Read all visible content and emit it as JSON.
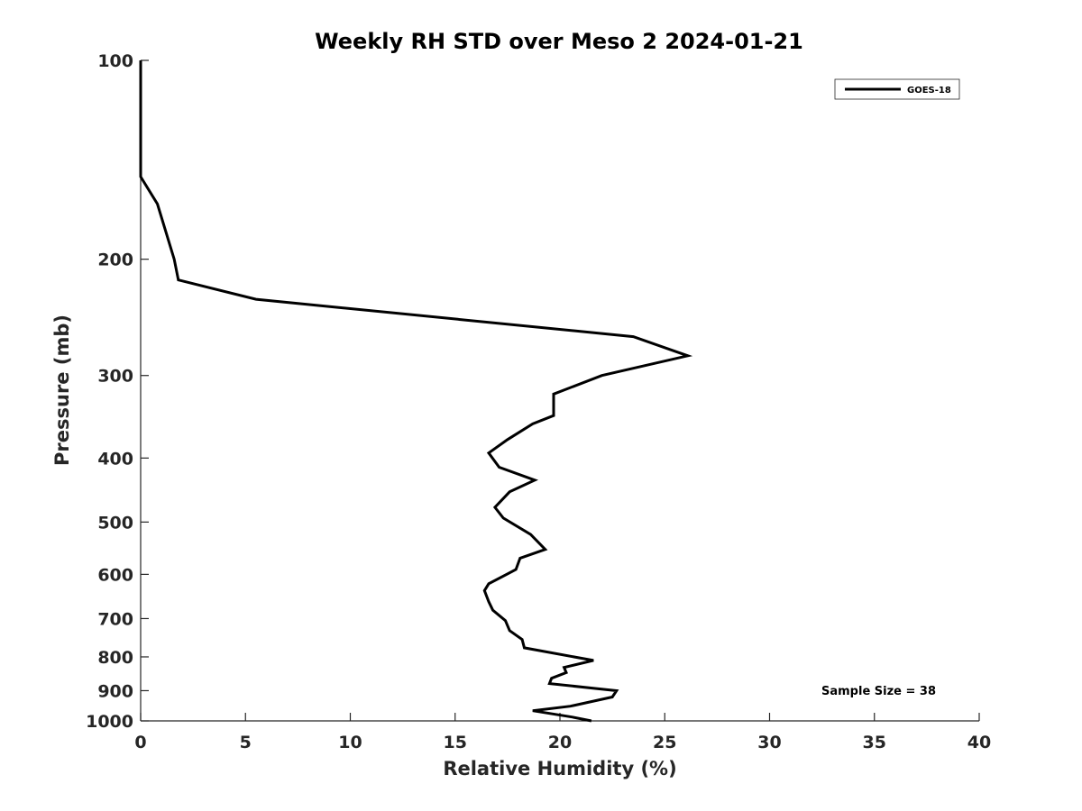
{
  "chart_data": {
    "type": "line",
    "title": "Weekly RH STD over Meso 2 2024-01-21",
    "xlabel": "Relative Humidity (%)",
    "ylabel": "Pressure (mb)",
    "xlim": [
      0,
      40
    ],
    "ylim": [
      100,
      1000
    ],
    "yscale": "log",
    "yreversed": true,
    "xticks": [
      0,
      5,
      10,
      15,
      20,
      25,
      30,
      35,
      40
    ],
    "xtick_labels": [
      "0",
      "5",
      "10",
      "15",
      "20",
      "25",
      "30",
      "35",
      "40"
    ],
    "yticks": [
      100,
      200,
      300,
      400,
      500,
      600,
      700,
      800,
      900,
      1000
    ],
    "ytick_labels": [
      "100",
      "200",
      "300",
      "400",
      "500",
      "600",
      "700",
      "800",
      "900",
      "1000"
    ],
    "grid": false,
    "legend_position": "top-right",
    "annotation": "Sample Size = 38",
    "series": [
      {
        "name": "GOES-18",
        "color": "#000000",
        "x": [
          0.0,
          0.0,
          0.8,
          1.6,
          1.8,
          5.5,
          23.5,
          26.1,
          22.0,
          19.7,
          19.7,
          18.7,
          17.5,
          16.6,
          17.1,
          18.8,
          17.6,
          16.9,
          17.3,
          18.6,
          19.3,
          18.1,
          17.9,
          16.6,
          16.4,
          16.6,
          16.8,
          17.4,
          17.6,
          18.2,
          18.3,
          21.6,
          20.2,
          20.3,
          19.6,
          19.5,
          22.7,
          22.5,
          20.5,
          18.7,
          20.6,
          21.5
        ],
        "y": [
          100,
          150,
          165,
          200,
          215,
          230,
          262,
          280,
          300,
          320,
          345,
          355,
          375,
          393,
          413,
          432,
          450,
          475,
          493,
          522,
          550,
          567,
          590,
          620,
          635,
          660,
          680,
          705,
          730,
          753,
          775,
          810,
          830,
          845,
          862,
          878,
          900,
          920,
          950,
          965,
          987,
          1000
        ]
      }
    ]
  }
}
